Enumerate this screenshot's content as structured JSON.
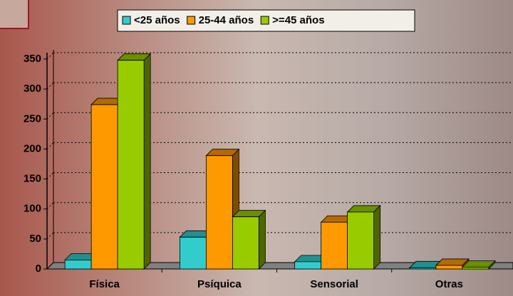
{
  "chart_data": {
    "type": "bar3d",
    "categories": [
      "Física",
      "Psíquica",
      "Sensorial",
      "Otras"
    ],
    "series": [
      {
        "name": "<25 años",
        "color": "#33cccc",
        "values": [
          15,
          53,
          12,
          2
        ]
      },
      {
        "name": "25-44 años",
        "color": "#ff9900",
        "values": [
          274,
          189,
          78,
          6
        ]
      },
      {
        "name": ">=45 años",
        "color": "#99cc00",
        "values": [
          348,
          87,
          95,
          3
        ]
      }
    ],
    "ylim": [
      0,
      350
    ],
    "yticks": [
      0,
      50,
      100,
      150,
      200,
      250,
      300,
      350
    ],
    "grid": true,
    "legend": "top"
  }
}
